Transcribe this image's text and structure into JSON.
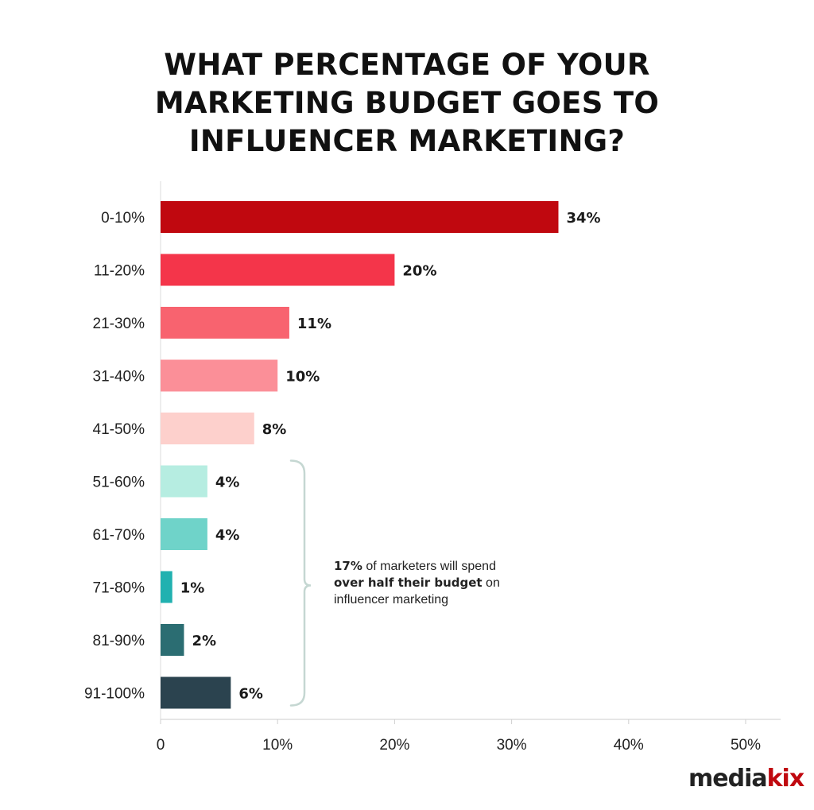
{
  "chart_data": {
    "type": "bar",
    "orientation": "horizontal",
    "title_lines": [
      "WHAT PERCENTAGE OF YOUR",
      "MARKETING BUDGET GOES TO",
      "INFLUENCER MARKETING?"
    ],
    "categories": [
      "0-10%",
      "11-20%",
      "21-30%",
      "31-40%",
      "41-50%",
      "51-60%",
      "61-70%",
      "71-80%",
      "81-90%",
      "91-100%"
    ],
    "values": [
      34,
      20,
      11,
      10,
      8,
      4,
      4,
      1,
      2,
      6
    ],
    "value_labels": [
      "34%",
      "20%",
      "11%",
      "10%",
      "8%",
      "4%",
      "4%",
      "1%",
      "2%",
      "6%"
    ],
    "colors": [
      "#c0080f",
      "#f4354a",
      "#f8636f",
      "#fb8f98",
      "#fdd0cc",
      "#b6ede1",
      "#6fd3c9",
      "#21b1b0",
      "#2b6d72",
      "#2b434f"
    ],
    "xlim": [
      0,
      50
    ],
    "x_ticks": [
      0,
      10,
      20,
      30,
      40,
      50
    ],
    "x_tick_labels": [
      "0",
      "10%",
      "20%",
      "30%",
      "40%",
      "50%"
    ],
    "grid": false,
    "annotation": {
      "highlight": "17%",
      "text1": " of marketers will spend ",
      "bold": "over half their budget",
      "text2": " on influencer marketing",
      "bracket_range": [
        "51-60%",
        "91-100%"
      ],
      "bracket_color": "#c5d7d2"
    }
  },
  "logo": {
    "part1": "media",
    "part2": "kix"
  }
}
